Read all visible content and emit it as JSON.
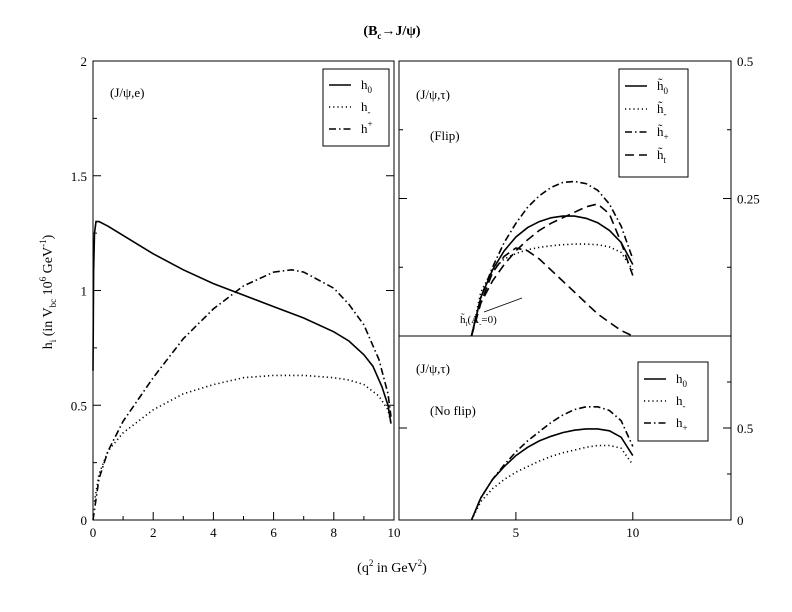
{
  "figure": {
    "title_main": "(B",
    "title_sub": "c",
    "title_rest": "→J/ψ)",
    "xlabel_pre": "(q",
    "xlabel_sup": "2",
    "xlabel_post": " in GeV",
    "xlabel_sup2": "2",
    "xlabel_end": ")",
    "ylabel_h": "h",
    "ylabel_i": "i",
    "ylabel_mid": " (in V",
    "ylabel_bc": "bc",
    "ylabel_10": " 10",
    "ylabel_6": "6",
    "ylabel_gev": " GeV",
    "ylabel_m1": "-1",
    "ylabel_end": ")"
  },
  "panels": {
    "left": {
      "label": "(J/ψ,e)",
      "legend": [
        {
          "base": "h",
          "sub": "0",
          "sup": ""
        },
        {
          "base": "h",
          "sub": "-",
          "sup": ""
        },
        {
          "base": "h",
          "sub": "",
          "sup": "+"
        }
      ]
    },
    "top_right": {
      "label": "(J/ψ,τ)",
      "label2": "(Flip)",
      "annotation": "h̃t(A_=0)",
      "annotation_base": "h̃",
      "annotation_sub": "t",
      "annotation_rest": "(A",
      "annotation_sub2": "-",
      "annotation_end": "=0)",
      "legend": [
        {
          "base": "h̃",
          "sub": "0"
        },
        {
          "base": "h̃",
          "sub": "-"
        },
        {
          "base": "h̃",
          "sub": "+"
        },
        {
          "base": "h̃",
          "sub": "t"
        }
      ]
    },
    "bottom_right": {
      "label": "(J/ψ,τ)",
      "label2": "(No flip)",
      "legend": [
        {
          "base": "h",
          "sub": "0"
        },
        {
          "base": "h",
          "sub": "-"
        },
        {
          "base": "h",
          "sub": "+"
        }
      ]
    }
  },
  "chart_data": [
    {
      "type": "line",
      "panel": "left",
      "xlim": [
        0,
        10
      ],
      "ylim": [
        0,
        2
      ],
      "xticks": [
        "0",
        "2",
        "4",
        "6",
        "8",
        "10"
      ],
      "yticks": [
        "0",
        "0.5",
        "1",
        "1.5",
        "2"
      ],
      "series": [
        {
          "name": "h0",
          "style": "solid",
          "x": [
            0.0,
            0.02,
            0.05,
            0.1,
            0.2,
            0.5,
            1,
            2,
            3,
            4,
            5,
            6,
            7,
            8,
            8.5,
            9,
            9.3,
            9.6,
            9.8,
            9.9
          ],
          "y": [
            0.65,
            1.08,
            1.25,
            1.3,
            1.3,
            1.28,
            1.24,
            1.16,
            1.09,
            1.03,
            0.98,
            0.93,
            0.88,
            0.82,
            0.78,
            0.72,
            0.67,
            0.58,
            0.5,
            0.42
          ]
        },
        {
          "name": "h-",
          "style": "dotted",
          "x": [
            0.05,
            0.2,
            0.5,
            1,
            2,
            3,
            4,
            5,
            6,
            7,
            8,
            8.5,
            9,
            9.5,
            9.8,
            9.9
          ],
          "y": [
            0.08,
            0.2,
            0.3,
            0.38,
            0.48,
            0.55,
            0.59,
            0.62,
            0.63,
            0.63,
            0.62,
            0.61,
            0.59,
            0.54,
            0.48,
            0.42
          ]
        },
        {
          "name": "h+",
          "style": "dashdot",
          "x": [
            0.0,
            0.2,
            0.5,
            1,
            2,
            3,
            4,
            5,
            6,
            6.6,
            7,
            8,
            8.5,
            9,
            9.5,
            9.8,
            9.9
          ],
          "y": [
            0.0,
            0.18,
            0.3,
            0.43,
            0.62,
            0.79,
            0.92,
            1.02,
            1.08,
            1.09,
            1.08,
            1.01,
            0.94,
            0.85,
            0.7,
            0.55,
            0.45
          ]
        }
      ]
    },
    {
      "type": "line",
      "panel": "top_right",
      "xlim": [
        0,
        14.2
      ],
      "ylim": [
        0,
        0.5
      ],
      "xticks": [],
      "yticks_right": [
        "0.25",
        "0.5"
      ],
      "series": [
        {
          "name": "h̃0",
          "style": "solid",
          "x": [
            3.1,
            3.5,
            4,
            4.5,
            5,
            5.5,
            6,
            6.5,
            7,
            7.5,
            8,
            8.5,
            9,
            9.5,
            10
          ],
          "y": [
            0.0,
            0.07,
            0.12,
            0.155,
            0.18,
            0.197,
            0.208,
            0.215,
            0.218,
            0.218,
            0.214,
            0.206,
            0.192,
            0.17,
            0.13
          ]
        },
        {
          "name": "h̃-",
          "style": "dotted",
          "x": [
            3.1,
            3.5,
            4,
            4.5,
            5,
            5.5,
            6,
            6.5,
            7,
            7.5,
            8,
            8.5,
            9,
            9.5,
            10
          ],
          "y": [
            0.0,
            0.08,
            0.12,
            0.14,
            0.15,
            0.157,
            0.161,
            0.164,
            0.166,
            0.167,
            0.167,
            0.166,
            0.162,
            0.152,
            0.12
          ]
        },
        {
          "name": "h̃+",
          "style": "dashdot",
          "x": [
            3.1,
            3.5,
            4,
            4.5,
            5,
            5.5,
            6,
            6.5,
            7,
            7.5,
            8,
            8.5,
            9,
            9.5,
            10
          ],
          "y": [
            0.0,
            0.07,
            0.125,
            0.17,
            0.205,
            0.234,
            0.255,
            0.27,
            0.279,
            0.281,
            0.277,
            0.265,
            0.24,
            0.2,
            0.14
          ]
        },
        {
          "name": "h̃t",
          "style": "dashed",
          "x": [
            3.1,
            3.5,
            4,
            4.5,
            5,
            5.5,
            6,
            6.5,
            7,
            7.5,
            8,
            8.5,
            9,
            9.5,
            10
          ],
          "y": [
            0.0,
            0.06,
            0.1,
            0.13,
            0.155,
            0.175,
            0.192,
            0.205,
            0.215,
            0.225,
            0.235,
            0.24,
            0.222,
            0.17,
            0.11
          ]
        },
        {
          "name": "h̃t(A_=0)",
          "style": "dashed",
          "x": [
            3.1,
            3.5,
            4,
            4.5,
            5,
            5.5,
            6,
            6.5,
            7,
            7.5,
            8,
            8.5,
            9,
            9.5,
            10
          ],
          "y": [
            0.0,
            0.06,
            0.115,
            0.145,
            0.16,
            0.155,
            0.14,
            0.12,
            0.1,
            0.08,
            0.06,
            0.04,
            0.025,
            0.01,
            0.0
          ]
        }
      ]
    },
    {
      "type": "line",
      "panel": "bottom_right",
      "xlim": [
        0,
        14.2
      ],
      "ylim": [
        0,
        1
      ],
      "xticks": [
        "5",
        "10"
      ],
      "yticks_right": [
        "0",
        "0.5"
      ],
      "series": [
        {
          "name": "h0",
          "style": "solid",
          "x": [
            3.1,
            3.5,
            4,
            4.5,
            5,
            5.5,
            6,
            6.5,
            7,
            7.5,
            8,
            8.5,
            9,
            9.5,
            10
          ],
          "y": [
            0.0,
            0.12,
            0.22,
            0.29,
            0.35,
            0.395,
            0.43,
            0.455,
            0.475,
            0.488,
            0.495,
            0.495,
            0.485,
            0.45,
            0.35
          ]
        },
        {
          "name": "h-",
          "style": "dotted",
          "x": [
            3.1,
            3.5,
            4,
            4.5,
            5,
            5.5,
            6,
            6.5,
            7,
            7.5,
            8,
            8.5,
            9,
            9.5,
            10
          ],
          "y": [
            0.0,
            0.1,
            0.17,
            0.22,
            0.26,
            0.29,
            0.32,
            0.345,
            0.365,
            0.38,
            0.395,
            0.405,
            0.405,
            0.39,
            0.3
          ]
        },
        {
          "name": "h+",
          "style": "dashdot",
          "x": [
            3.1,
            3.5,
            4,
            4.5,
            5,
            5.5,
            6,
            6.5,
            7,
            7.5,
            8,
            8.5,
            9,
            9.5,
            10
          ],
          "y": [
            0.0,
            0.12,
            0.22,
            0.3,
            0.37,
            0.43,
            0.48,
            0.53,
            0.57,
            0.6,
            0.615,
            0.615,
            0.595,
            0.54,
            0.4
          ]
        }
      ]
    }
  ]
}
